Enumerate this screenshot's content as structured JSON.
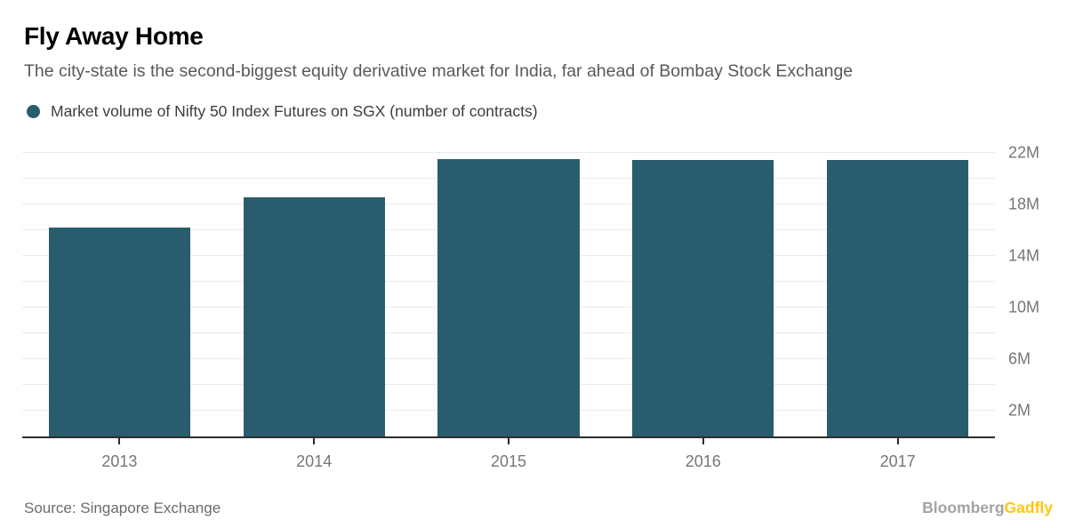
{
  "header": {
    "title": "Fly Away Home",
    "subtitle": "The city-state is the second-biggest equity derivative market for India, far ahead of Bombay Stock Exchange"
  },
  "legend": {
    "marker_color": "#295c6d",
    "label": "Market volume of Nifty 50 Index Futures on SGX (number of contracts)"
  },
  "chart_data": {
    "type": "bar",
    "title": "Fly Away Home",
    "series_label": "Market volume of Nifty 50 Index Futures on SGX (number of contracts)",
    "categories": [
      "2013",
      "2014",
      "2015",
      "2016",
      "2017"
    ],
    "values": [
      16.2,
      18.5,
      21.5,
      21.45,
      21.4
    ],
    "values_unit": "millions of contracts",
    "xlabel": "",
    "ylabel": "",
    "ylim": [
      0,
      22.8
    ],
    "y_gridline_step": 2,
    "y_tick_values": [
      2,
      6,
      10,
      14,
      18,
      22
    ],
    "y_tick_labels": [
      "2M",
      "6M",
      "10M",
      "14M",
      "18M",
      "22M"
    ],
    "grid": true,
    "gridline_color": "#ebebeb",
    "bar_color": "#295c6d",
    "axis_color": "#2e2e2e",
    "tick_label_color": "#767676",
    "legend_position": "top-left"
  },
  "footer": {
    "source": "Source: Singapore Exchange",
    "logo": {
      "part1": "Bloomberg",
      "part2": "Gadfly"
    }
  }
}
